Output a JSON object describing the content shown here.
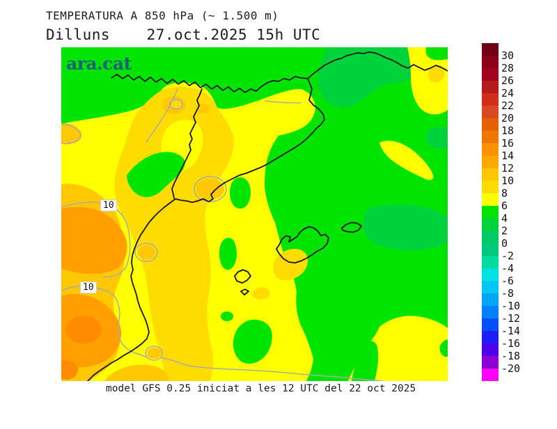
{
  "header": {
    "line1": "TEMPERATURA A 850 hPa (~ 1.500 m)",
    "line2": "Dilluns    27.oct.2025 15h UTC"
  },
  "footer": {
    "caption": "model GFS 0.25 iniciat a les 12 UTC del 22 oct 2025"
  },
  "map": {
    "logo_text": "ara.cat",
    "logo_color": "#19607D",
    "contour_label_1": "10",
    "contour_label_2": "10"
  },
  "colorbar": {
    "tick_values": [
      30,
      28,
      26,
      24,
      22,
      20,
      18,
      16,
      14,
      12,
      10,
      8,
      6,
      4,
      2,
      0,
      -2,
      -4,
      -6,
      -8,
      -10,
      -12,
      -14,
      -16,
      -18,
      -20
    ],
    "segment_colors": [
      "#6E0016",
      "#8C0018",
      "#A2001E",
      "#B41C1C",
      "#D22D1B",
      "#D94A22",
      "#E66000",
      "#EE7700",
      "#FF9000",
      "#FFA800",
      "#FFC800",
      "#FFDC00",
      "#FFFF00",
      "#00E400",
      "#00D23C",
      "#00C864",
      "#00C87D",
      "#00DCA0",
      "#00E1E1",
      "#00C8F0",
      "#00A5F5",
      "#0080FA",
      "#0050FA",
      "#1E1EFA",
      "#5000E6",
      "#8C00D2",
      "#FF00FF"
    ]
  },
  "palette": {
    "yellow": "#FFFF00",
    "gold": "#FFDC00",
    "amber": "#FFC800",
    "orange": "#FFA000",
    "deeporange": "#FF8C00",
    "green": "#00E400",
    "medgreen": "#00D23C",
    "coastline": "#141414",
    "grayline": "#ABABAB"
  }
}
